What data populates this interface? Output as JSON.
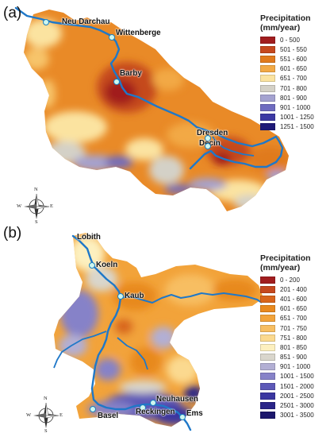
{
  "panels": [
    {
      "label": "(a)",
      "legend": {
        "title": "Precipitation",
        "unit": "(mm/year)",
        "items": [
          {
            "range": "0 - 500",
            "color": "#a11d1f"
          },
          {
            "range": "501 - 550",
            "color": "#c5481e"
          },
          {
            "range": "551 - 600",
            "color": "#e07a1c"
          },
          {
            "range": "601 - 650",
            "color": "#f2a945"
          },
          {
            "range": "651 - 700",
            "color": "#fbe3a0"
          },
          {
            "range": "701 - 800",
            "color": "#d4d1c7"
          },
          {
            "range": "801 - 900",
            "color": "#a4a2d0"
          },
          {
            "range": "901 - 1000",
            "color": "#6f6cc0"
          },
          {
            "range": "1001 - 1250",
            "color": "#3c39a4"
          },
          {
            "range": "1251 - 1500",
            "color": "#1f1a78"
          }
        ]
      },
      "stations": [
        {
          "name": "Neu Darchau"
        },
        {
          "name": "Wittenberge"
        },
        {
          "name": "Barby"
        },
        {
          "name": "Dresden"
        },
        {
          "name": "Decin"
        }
      ]
    },
    {
      "label": "(b)",
      "legend": {
        "title": "Precipitation",
        "unit": "(mm/year)",
        "items": [
          {
            "range": "0 - 200",
            "color": "#a11d1f"
          },
          {
            "range": "201 - 400",
            "color": "#c5481e"
          },
          {
            "range": "401 - 600",
            "color": "#d8651c"
          },
          {
            "range": "601 - 650",
            "color": "#e8891f"
          },
          {
            "range": "651 - 700",
            "color": "#f2a33a"
          },
          {
            "range": "701 - 750",
            "color": "#f7be62"
          },
          {
            "range": "751 - 800",
            "color": "#fbd98f"
          },
          {
            "range": "801 - 850",
            "color": "#fdf0bf"
          },
          {
            "range": "851 - 900",
            "color": "#d9d6cc"
          },
          {
            "range": "901 - 1000",
            "color": "#b2afd4"
          },
          {
            "range": "1001 - 1500",
            "color": "#8682c8"
          },
          {
            "range": "1501 - 2000",
            "color": "#5d59b8"
          },
          {
            "range": "2001 - 2500",
            "color": "#3a36a0"
          },
          {
            "range": "2501 - 3000",
            "color": "#2a2588"
          },
          {
            "range": "3001 - 3500",
            "color": "#1c176c"
          }
        ]
      },
      "stations": [
        {
          "name": "Lobith"
        },
        {
          "name": "Koeln"
        },
        {
          "name": "Kaub"
        },
        {
          "name": "Basel"
        },
        {
          "name": "Reckingen"
        },
        {
          "name": "Neuhausen"
        },
        {
          "name": "Ems"
        }
      ]
    }
  ],
  "compass": {
    "n": "N",
    "s": "S",
    "e": "E",
    "w": "W"
  },
  "river_color": "#1f78c8"
}
